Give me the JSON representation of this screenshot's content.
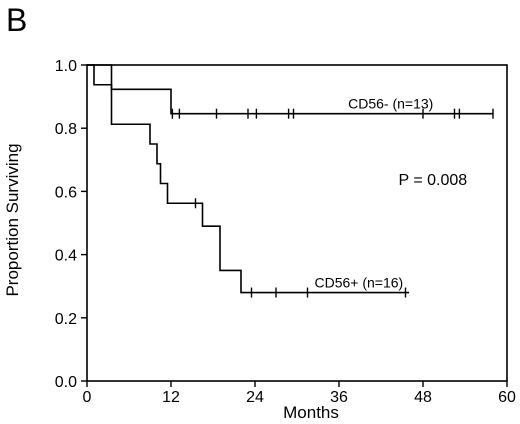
{
  "panel_letter": "B",
  "chart_data": {
    "type": "line",
    "title": "",
    "xlabel": "Months",
    "ylabel": "Proportion Surviving",
    "xlim": [
      0,
      60
    ],
    "ylim": [
      0,
      1.0
    ],
    "xticks": [
      0,
      12,
      24,
      36,
      48,
      60
    ],
    "yticks": [
      0.0,
      0.2,
      0.4,
      0.6,
      0.8,
      1.0
    ],
    "xtick_labels": [
      "0",
      "12",
      "24",
      "36",
      "48",
      "60"
    ],
    "ytick_labels": [
      "0.0",
      "0.2",
      "0.4",
      "0.6",
      "0.8",
      "1.0"
    ],
    "grid": false,
    "series": [
      {
        "name": "CD56- (n=13)",
        "steps": [
          [
            0,
            1.0
          ],
          [
            3.5,
            0.923
          ],
          [
            12,
            0.846
          ]
        ],
        "end_x": 58,
        "censors": [
          12.2,
          13.2,
          18.5,
          23,
          24.2,
          28.8,
          29.5,
          48,
          52.5,
          53.2,
          58
        ]
      },
      {
        "name": "CD56+ (n=16)",
        "steps": [
          [
            0,
            1.0
          ],
          [
            1,
            0.9375
          ],
          [
            3.5,
            0.8125
          ],
          [
            9,
            0.75
          ],
          [
            10,
            0.6875
          ],
          [
            10.5,
            0.625
          ],
          [
            11.5,
            0.5625
          ],
          [
            16.5,
            0.49
          ],
          [
            19,
            0.35
          ],
          [
            22,
            0.28
          ]
        ],
        "end_x": 46,
        "censors": [
          15.5,
          23.5,
          27,
          31.5,
          45.5
        ]
      }
    ],
    "annotations": [
      {
        "text": "P = 0.008",
        "x": 44.5,
        "y": 0.62
      }
    ]
  }
}
